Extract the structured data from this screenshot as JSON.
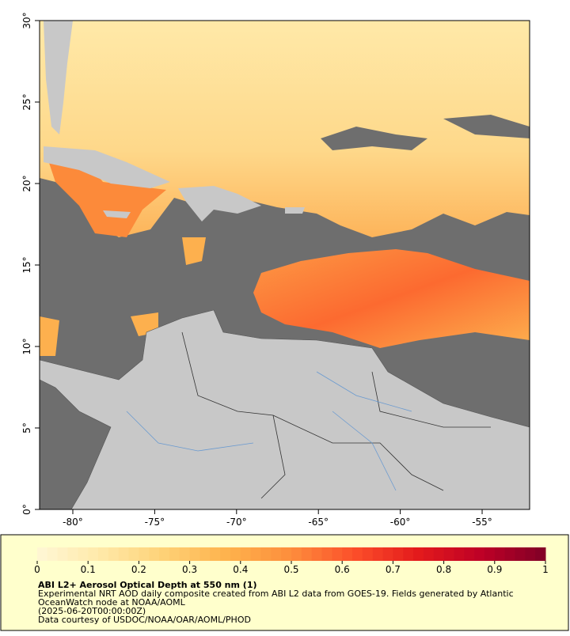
{
  "map": {
    "xlim": [
      -82.03,
      -52.1
    ],
    "ylim": [
      0,
      30
    ],
    "xticks": [
      {
        "value": -80,
        "label": "-80°"
      },
      {
        "value": -75,
        "label": "-75°"
      },
      {
        "value": -70,
        "label": "-70°"
      },
      {
        "value": -65,
        "label": "-65°"
      },
      {
        "value": -60,
        "label": "-60°"
      },
      {
        "value": -55,
        "label": "-55°"
      }
    ],
    "yticks": [
      {
        "value": 0,
        "label": "0°"
      },
      {
        "value": 5,
        "label": "5°"
      },
      {
        "value": 10,
        "label": "10°"
      },
      {
        "value": 15,
        "label": "15°"
      },
      {
        "value": 20,
        "label": "20°"
      },
      {
        "value": 25,
        "label": "25°"
      },
      {
        "value": 30,
        "label": "30°"
      }
    ]
  },
  "colorbar": {
    "lim": [
      0,
      1
    ],
    "ticks": [
      0,
      0.1,
      0.2,
      0.3,
      0.4,
      0.5,
      0.6,
      0.7,
      0.8,
      0.9,
      1
    ],
    "colors": [
      "#fff7d6",
      "#ffe9a8",
      "#fed176",
      "#feb24c",
      "#fd8d3c",
      "#fc4e2a",
      "#e31a1c",
      "#bd0026",
      "#800026"
    ]
  },
  "caption": {
    "title": "ABI L2+ Aerosol Optical Depth at 550 nm (1)",
    "lines": [
      "Experimental NRT AOD daily composite created from ABI L2 data from GOES-19. Fields generated by Atlantic",
      "OceanWatch node at NOAA/AOML",
      "(2025-06-20T00:00:00Z)",
      "Data courtesy of USDOC/NOAA/OAR/AOML/PHOD"
    ]
  }
}
